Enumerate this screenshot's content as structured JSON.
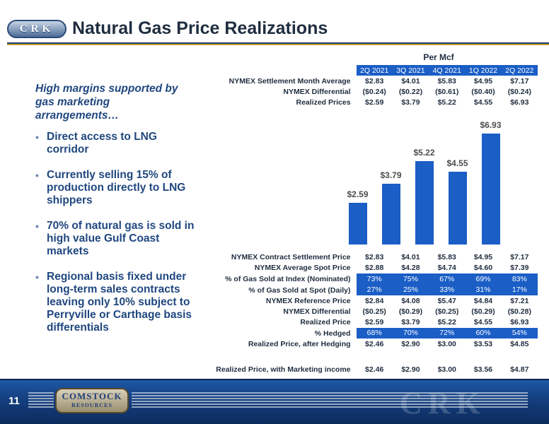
{
  "header": {
    "logo_text": "CRK",
    "title": "Natural Gas Price Realizations"
  },
  "left_panel": {
    "intro": "High margins supported by gas marketing arrangements…",
    "bullets": [
      "Direct access to LNG corridor",
      "Currently selling 15% of production directly to LNG shippers",
      "70% of natural gas is sold in high value Gulf Coast markets",
      "Regional basis fixed under long-term sales contracts leaving only 10% subject to Perryville or Carthage basis differentials"
    ]
  },
  "per_mcf_label": "Per Mcf",
  "quarters": [
    "2Q 2021",
    "3Q 2021",
    "4Q 2021",
    "1Q 2022",
    "2Q 2022"
  ],
  "top_table": [
    {
      "label": "NYMEX Settlement Month Average",
      "values": [
        "$2.83",
        "$4.01",
        "$5.83",
        "$4.95",
        "$7.17"
      ]
    },
    {
      "label": "NYMEX Differential",
      "values": [
        "($0.24)",
        "($0.22)",
        "($0.61)",
        "($0.40)",
        "($0.24)"
      ]
    },
    {
      "label": "Realized Prices",
      "values": [
        "$2.59",
        "$3.79",
        "$5.22",
        "$4.55",
        "$6.93"
      ]
    }
  ],
  "chart_data": {
    "type": "bar",
    "categories": [
      "2Q 2021",
      "3Q 2021",
      "4Q 2021",
      "1Q 2022",
      "2Q 2022"
    ],
    "values": [
      2.59,
      3.79,
      5.22,
      4.55,
      6.93
    ],
    "data_labels": [
      "$2.59",
      "$3.79",
      "$5.22",
      "$4.55",
      "$6.93"
    ],
    "ylim": [
      0,
      7.5
    ],
    "bar_color": "#1a5ec6",
    "grid": false
  },
  "bottom_table": [
    {
      "label": "NYMEX Contract Settlement Price",
      "values": [
        "$2.83",
        "$4.01",
        "$5.83",
        "$4.95",
        "$7.17"
      ],
      "highlight": false
    },
    {
      "label": "NYMEX Average Spot Price",
      "values": [
        "$2.88",
        "$4.28",
        "$4.74",
        "$4.60",
        "$7.39"
      ],
      "highlight": false
    },
    {
      "label": "% of Gas Sold at Index (Nominated)",
      "values": [
        "73%",
        "75%",
        "67%",
        "69%",
        "83%"
      ],
      "highlight": true
    },
    {
      "label": "% of Gas Sold at Spot (Daily)",
      "values": [
        "27%",
        "25%",
        "33%",
        "31%",
        "17%"
      ],
      "highlight": true
    },
    {
      "label": "NYMEX Reference Price",
      "values": [
        "$2.84",
        "$4.08",
        "$5.47",
        "$4.84",
        "$7.21"
      ],
      "highlight": false
    },
    {
      "label": "NYMEX Differential",
      "values": [
        "($0.25)",
        "($0.29)",
        "($0.25)",
        "($0.29)",
        "($0.28)"
      ],
      "highlight": false
    },
    {
      "label": "Realized Price",
      "values": [
        "$2.59",
        "$3.79",
        "$5.22",
        "$4.55",
        "$6.93"
      ],
      "highlight": false
    },
    {
      "label": "% Hedged",
      "values": [
        "68%",
        "70%",
        "72%",
        "60%",
        "54%"
      ],
      "highlight": true
    },
    {
      "label": "Realized Price, after Hedging",
      "values": [
        "$2.46",
        "$2.90",
        "$3.00",
        "$3.53",
        "$4.85"
      ],
      "highlight": false
    },
    {
      "label": "Realized Price, with Marketing income",
      "values": [
        "$2.46",
        "$2.90",
        "$3.00",
        "$3.56",
        "$4.87"
      ],
      "highlight": false,
      "gap_before": true
    }
  ],
  "footer": {
    "page_number": "11",
    "logo_line1": "COMSTOCK",
    "logo_line2": "RESOURCES",
    "watermark": "CRK"
  },
  "colors": {
    "accent": "#1a5ec6",
    "title_text": "#1f2d3f",
    "bullet_text": "#1f477f",
    "gold_rule": "#c7a02e",
    "footer_blue": "#143f7f"
  }
}
